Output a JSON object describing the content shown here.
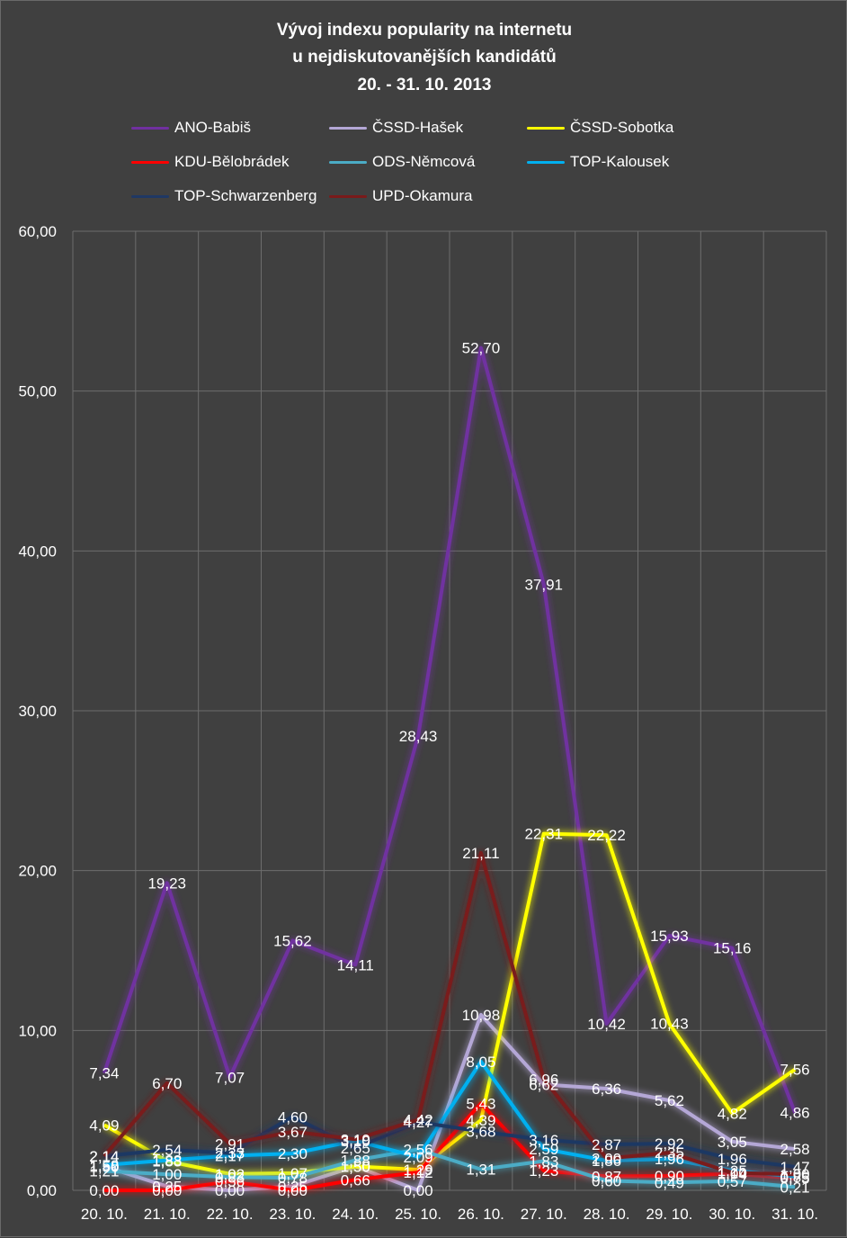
{
  "chart_data": {
    "type": "line",
    "title_lines": [
      "Vývoj indexu popularity na internetu",
      "u nejdiskutovanějších kandidátů",
      "20. - 31. 10. 2013"
    ],
    "categories": [
      "20. 10.",
      "21. 10.",
      "22. 10.",
      "23. 10.",
      "24. 10.",
      "25. 10.",
      "26. 10.",
      "27. 10.",
      "28. 10.",
      "29. 10.",
      "30. 10.",
      "31. 10."
    ],
    "ylim": [
      0,
      60
    ],
    "yticks": [
      "0,00",
      "10,00",
      "20,00",
      "30,00",
      "40,00",
      "50,00",
      "60,00"
    ],
    "grid": true,
    "legend_position": "top",
    "series": [
      {
        "name": "ANO-Babiš",
        "color": "#7030a0",
        "values": [
          7.34,
          19.23,
          7.07,
          15.62,
          14.11,
          28.43,
          52.7,
          37.91,
          10.42,
          15.93,
          15.16,
          4.86
        ],
        "labels": [
          "7,34",
          "19,23",
          "7,07",
          "15,62",
          "14,11",
          "28,43",
          "52,70",
          "37,91",
          "10,42",
          "15,93",
          "15,16",
          "4,86"
        ]
      },
      {
        "name": "ČSSD-Hašek",
        "color": "#b4a7d6",
        "values": [
          1.5,
          0.25,
          0.0,
          0.25,
          1.5,
          0.0,
          10.98,
          6.62,
          6.36,
          5.62,
          3.05,
          2.58
        ],
        "labels": [
          "1,50",
          "0,25",
          "0,00",
          "0,25",
          "1,50",
          "0,00",
          "10,98",
          "6,62",
          "6,36",
          "5,62",
          "3,05",
          "2,58"
        ]
      },
      {
        "name": "ČSSD-Sobotka",
        "color": "#ffff00",
        "values": [
          4.09,
          1.83,
          1.02,
          1.07,
          1.5,
          1.29,
          4.39,
          22.31,
          22.22,
          10.43,
          4.82,
          7.56
        ],
        "labels": [
          "4,09",
          "1,83",
          "1,02",
          "1,07",
          "1,50",
          "1,29",
          "4,39",
          "22,31",
          "22,22",
          "10,43",
          "4,82",
          "7,56"
        ]
      },
      {
        "name": "KDU-Bělobrádek",
        "color": "#ff0000",
        "values": [
          0.0,
          0.0,
          0.56,
          0.0,
          0.66,
          1.12,
          5.43,
          1.23,
          0.87,
          0.9,
          1.04,
          0.75
        ],
        "labels": [
          "0,00",
          "0,00",
          "0,56",
          "0,00",
          "0,66",
          "1,12",
          "5,43",
          "1,23",
          "0,87",
          "0,90",
          "1,04",
          "0,75"
        ]
      },
      {
        "name": "ODS-Němcová",
        "color": "#4bacc6",
        "values": [
          1.21,
          1.0,
          0.83,
          0.78,
          1.88,
          2.56,
          1.31,
          1.83,
          0.6,
          0.49,
          0.57,
          0.21
        ],
        "labels": [
          "1,21",
          "1,00",
          "0,83",
          "0,78",
          "1,88",
          "2,56",
          "1,31",
          "1,83",
          "0,60",
          "0,49",
          "0,57",
          "0,21"
        ]
      },
      {
        "name": "TOP-Kalousek",
        "color": "#00b0f0",
        "values": [
          1.58,
          1.88,
          2.17,
          2.3,
          3.1,
          2.09,
          8.05,
          2.59,
          1.86,
          1.96,
          1.25,
          0.85
        ],
        "labels": [
          "1,58",
          "1,88",
          "2,17",
          "2,30",
          "3,10",
          "2,09",
          "8,05",
          "2,59",
          "1,86",
          "1,96",
          "1,25",
          "0,85"
        ]
      },
      {
        "name": "TOP-Schwarzenberg",
        "color": "#1f3864",
        "values": [
          2.14,
          2.54,
          2.33,
          4.6,
          2.65,
          4.27,
          3.68,
          3.16,
          2.87,
          2.92,
          1.96,
          1.47
        ],
        "labels": [
          "2,14",
          "2,54",
          "2,33",
          "4,60",
          "2,65",
          "4,27",
          "3,68",
          "3,16",
          "2,87",
          "2,92",
          "1,96",
          "1,47"
        ]
      },
      {
        "name": "UPD-Okamura",
        "color": "#7a1a1a",
        "values": [
          2.14,
          6.7,
          2.91,
          3.67,
          3.19,
          4.42,
          21.11,
          6.96,
          2.0,
          2.35,
          1.1,
          1.0
        ],
        "labels": [
          "2,14",
          "6,70",
          "2,91",
          "3,67",
          "3,19",
          "4,42",
          "21,11",
          "6,96",
          "2,00",
          "2,35",
          "1,10",
          "1,00"
        ]
      }
    ]
  }
}
